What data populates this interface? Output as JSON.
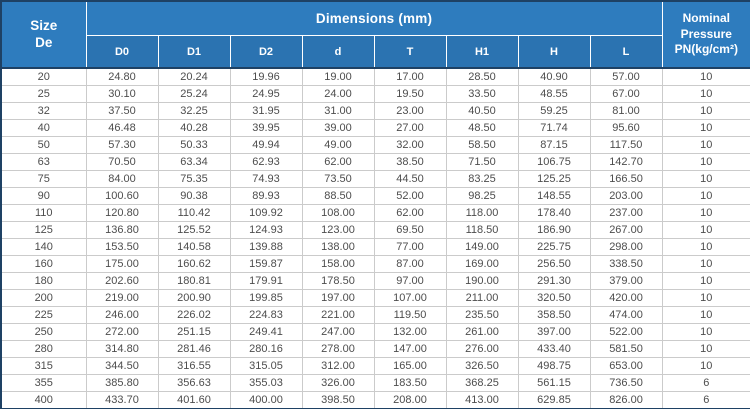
{
  "colors": {
    "header_blue": "#2E7CBE",
    "subheader_blue": "#2B73B1",
    "border_navy": "#1E4164",
    "grid_gray": "#CBCBCB",
    "text_gray": "#4D4D4D",
    "header_text": "#FFFFFF"
  },
  "table": {
    "corner_header": {
      "line1": "Size",
      "line2": "De"
    },
    "group_header": "Dimensions (mm)",
    "pressure_header": {
      "line1": "Nominal",
      "line2": "Pressure",
      "line3": "PN(kg/cm²)"
    },
    "columns": [
      "D0",
      "D1",
      "D2",
      "d",
      "T",
      "H1",
      "H",
      "L"
    ],
    "rows": [
      {
        "size": "20",
        "values": [
          "24.80",
          "20.24",
          "19.96",
          "19.00",
          "17.00",
          "28.50",
          "40.90",
          "57.00"
        ],
        "pn": "10"
      },
      {
        "size": "25",
        "values": [
          "30.10",
          "25.24",
          "24.95",
          "24.00",
          "19.50",
          "33.50",
          "48.55",
          "67.00"
        ],
        "pn": "10"
      },
      {
        "size": "32",
        "values": [
          "37.50",
          "32.25",
          "31.95",
          "31.00",
          "23.00",
          "40.50",
          "59.25",
          "81.00"
        ],
        "pn": "10"
      },
      {
        "size": "40",
        "values": [
          "46.48",
          "40.28",
          "39.95",
          "39.00",
          "27.00",
          "48.50",
          "71.74",
          "95.60"
        ],
        "pn": "10"
      },
      {
        "size": "50",
        "values": [
          "57.30",
          "50.33",
          "49.94",
          "49.00",
          "32.00",
          "58.50",
          "87.15",
          "117.50"
        ],
        "pn": "10"
      },
      {
        "size": "63",
        "values": [
          "70.50",
          "63.34",
          "62.93",
          "62.00",
          "38.50",
          "71.50",
          "106.75",
          "142.70"
        ],
        "pn": "10"
      },
      {
        "size": "75",
        "values": [
          "84.00",
          "75.35",
          "74.93",
          "73.50",
          "44.50",
          "83.25",
          "125.25",
          "166.50"
        ],
        "pn": "10"
      },
      {
        "size": "90",
        "values": [
          "100.60",
          "90.38",
          "89.93",
          "88.50",
          "52.00",
          "98.25",
          "148.55",
          "203.00"
        ],
        "pn": "10"
      },
      {
        "size": "110",
        "values": [
          "120.80",
          "110.42",
          "109.92",
          "108.00",
          "62.00",
          "118.00",
          "178.40",
          "237.00"
        ],
        "pn": "10"
      },
      {
        "size": "125",
        "values": [
          "136.80",
          "125.52",
          "124.93",
          "123.00",
          "69.50",
          "118.50",
          "186.90",
          "267.00"
        ],
        "pn": "10"
      },
      {
        "size": "140",
        "values": [
          "153.50",
          "140.58",
          "139.88",
          "138.00",
          "77.00",
          "149.00",
          "225.75",
          "298.00"
        ],
        "pn": "10"
      },
      {
        "size": "160",
        "values": [
          "175.00",
          "160.62",
          "159.87",
          "158.00",
          "87.00",
          "169.00",
          "256.50",
          "338.50"
        ],
        "pn": "10"
      },
      {
        "size": "180",
        "values": [
          "202.60",
          "180.81",
          "179.91",
          "178.50",
          "97.00",
          "190.00",
          "291.30",
          "379.00"
        ],
        "pn": "10"
      },
      {
        "size": "200",
        "values": [
          "219.00",
          "200.90",
          "199.85",
          "197.00",
          "107.00",
          "211.00",
          "320.50",
          "420.00"
        ],
        "pn": "10"
      },
      {
        "size": "225",
        "values": [
          "246.00",
          "226.02",
          "224.83",
          "221.00",
          "119.50",
          "235.50",
          "358.50",
          "474.00"
        ],
        "pn": "10"
      },
      {
        "size": "250",
        "values": [
          "272.00",
          "251.15",
          "249.41",
          "247.00",
          "132.00",
          "261.00",
          "397.00",
          "522.00"
        ],
        "pn": "10"
      },
      {
        "size": "280",
        "values": [
          "314.80",
          "281.46",
          "280.16",
          "278.00",
          "147.00",
          "276.00",
          "433.40",
          "581.50"
        ],
        "pn": "10"
      },
      {
        "size": "315",
        "values": [
          "344.50",
          "316.55",
          "315.05",
          "312.00",
          "165.00",
          "326.50",
          "498.75",
          "653.00"
        ],
        "pn": "10"
      },
      {
        "size": "355",
        "values": [
          "385.80",
          "356.63",
          "355.03",
          "326.00",
          "183.50",
          "368.25",
          "561.15",
          "736.50"
        ],
        "pn": "6"
      },
      {
        "size": "400",
        "values": [
          "433.70",
          "401.60",
          "400.00",
          "398.50",
          "208.00",
          "413.00",
          "629.85",
          "826.00"
        ],
        "pn": "6"
      }
    ]
  }
}
